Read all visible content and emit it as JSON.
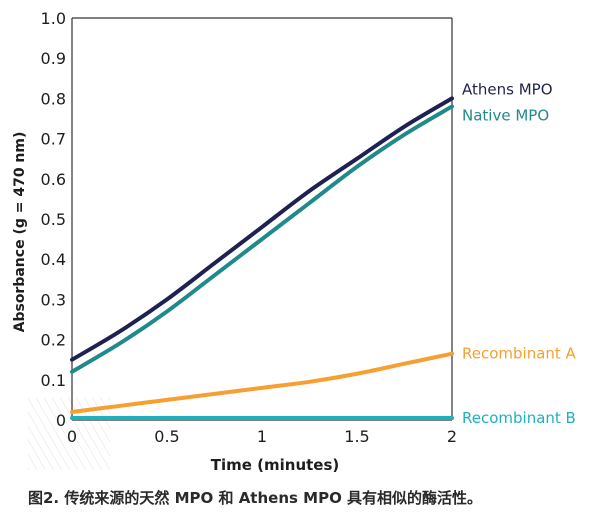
{
  "chart_data": {
    "type": "line",
    "ylabel": "Absorbance (g = 470 nm)",
    "xlabel": "Time (minutes)",
    "xlim": [
      0,
      2
    ],
    "ylim": [
      0,
      1.0
    ],
    "x_ticks": [
      "0",
      "0.5",
      "1",
      "1.5",
      "2"
    ],
    "y_ticks": [
      "0",
      "0.1",
      "0.2",
      "0.3",
      "0.4",
      "0.5",
      "0.6",
      "0.7",
      "0.8",
      "0.9",
      "1.0"
    ],
    "grid": false,
    "legend": "labels at right end of each line",
    "x": [
      0,
      0.25,
      0.5,
      0.75,
      1.0,
      1.25,
      1.5,
      1.75,
      2.0
    ],
    "series": [
      {
        "name": "Athens MPO",
        "color": "#1f2150",
        "values": [
          0.15,
          0.22,
          0.3,
          0.39,
          0.48,
          0.57,
          0.65,
          0.73,
          0.8
        ]
      },
      {
        "name": "Native MPO",
        "color": "#208a8a",
        "values": [
          0.12,
          0.19,
          0.27,
          0.36,
          0.45,
          0.54,
          0.63,
          0.71,
          0.78
        ]
      },
      {
        "name": "Recombinant A",
        "color": "#f5a030",
        "values": [
          0.02,
          0.035,
          0.05,
          0.065,
          0.08,
          0.095,
          0.115,
          0.14,
          0.165
        ]
      },
      {
        "name": "Recombinant B",
        "color": "#1fb0c0",
        "values": [
          0.005,
          0.005,
          0.005,
          0.005,
          0.005,
          0.005,
          0.005,
          0.005,
          0.005
        ]
      }
    ]
  },
  "caption": "图2. 传统来源的天然 MPO 和 Athens MPO 具有相似的酶活性。"
}
